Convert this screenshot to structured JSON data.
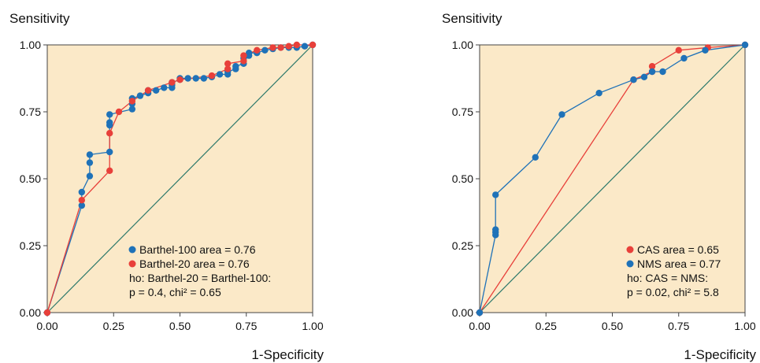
{
  "colors": {
    "background": "#fbe9c8",
    "diagonal": "#2f7a6c",
    "blue": "#1f72b8",
    "red": "#e8403a",
    "axis": "#444444"
  },
  "chart_data": [
    {
      "type": "line",
      "ylabel": "Sensitivity",
      "xlabel": "1-Specificity",
      "xlim": [
        0,
        1
      ],
      "ylim": [
        0,
        1
      ],
      "xticks": [
        "0.00",
        "0.25",
        "0.50",
        "0.75",
        "1.00"
      ],
      "yticks": [
        "0.00",
        "0.25",
        "0.50",
        "0.75",
        "1.00"
      ],
      "series": [
        {
          "name": "Barthel-100 area = 0.76",
          "color": "#1f72b8",
          "x": [
            0,
            0.13,
            0.13,
            0.16,
            0.16,
            0.16,
            0.235,
            0.235,
            0.235,
            0.235,
            0.32,
            0.32,
            0.32,
            0.35,
            0.38,
            0.38,
            0.41,
            0.44,
            0.47,
            0.47,
            0.47,
            0.5,
            0.5,
            0.53,
            0.56,
            0.59,
            0.62,
            0.65,
            0.68,
            0.68,
            0.71,
            0.71,
            0.74,
            0.74,
            0.76,
            0.76,
            0.79,
            0.82,
            0.85,
            0.88,
            0.91,
            0.94,
            0.97,
            1.0
          ],
          "y": [
            0,
            0.4,
            0.45,
            0.51,
            0.56,
            0.59,
            0.6,
            0.7,
            0.71,
            0.74,
            0.76,
            0.78,
            0.8,
            0.81,
            0.82,
            0.83,
            0.83,
            0.84,
            0.84,
            0.85,
            0.86,
            0.87,
            0.875,
            0.875,
            0.875,
            0.875,
            0.88,
            0.89,
            0.89,
            0.9,
            0.91,
            0.92,
            0.93,
            0.95,
            0.96,
            0.97,
            0.97,
            0.98,
            0.985,
            0.99,
            0.99,
            0.99,
            0.995,
            1.0
          ]
        },
        {
          "name": "Barthel-20 area = 0.76",
          "color": "#e8403a",
          "x": [
            0,
            0.13,
            0.235,
            0.235,
            0.27,
            0.32,
            0.38,
            0.47,
            0.5,
            0.62,
            0.68,
            0.68,
            0.74,
            0.74,
            0.79,
            0.85,
            0.88,
            0.91,
            0.94,
            1.0
          ],
          "y": [
            0,
            0.42,
            0.53,
            0.67,
            0.75,
            0.79,
            0.83,
            0.86,
            0.87,
            0.885,
            0.91,
            0.93,
            0.94,
            0.96,
            0.98,
            0.99,
            0.99,
            0.995,
            1.0,
            1.0
          ]
        }
      ],
      "legend": {
        "placement": "bottom-right",
        "entries": [
          {
            "label": "Barthel-100 area = 0.76",
            "color": "#1f72b8"
          },
          {
            "label": "Barthel-20 area = 0.76",
            "color": "#e8403a"
          }
        ],
        "notes": [
          "ho: Barthel-20 = Barthel-100:",
          "p = 0.4, chi² = 0.65"
        ]
      }
    },
    {
      "type": "line",
      "ylabel": "Sensitivity",
      "xlabel": "1-Specificity",
      "xlim": [
        0,
        1
      ],
      "ylim": [
        0,
        1
      ],
      "xticks": [
        "0.00",
        "0.25",
        "0.50",
        "0.75",
        "1.00"
      ],
      "yticks": [
        "0.00",
        "0.25",
        "0.50",
        "0.75",
        "1.00"
      ],
      "series": [
        {
          "name": "CAS area = 0.65",
          "color": "#e8403a",
          "x": [
            0,
            0.58,
            0.65,
            0.65,
            0.75,
            0.86,
            1.0
          ],
          "y": [
            0,
            0.87,
            0.9,
            0.92,
            0.98,
            0.99,
            1.0
          ]
        },
        {
          "name": "NMS area = 0.77",
          "color": "#1f72b8",
          "x": [
            0,
            0.06,
            0.06,
            0.06,
            0.06,
            0.21,
            0.31,
            0.45,
            0.58,
            0.62,
            0.65,
            0.69,
            0.77,
            0.85,
            1.0
          ],
          "y": [
            0,
            0.29,
            0.3,
            0.31,
            0.44,
            0.58,
            0.74,
            0.82,
            0.87,
            0.88,
            0.9,
            0.9,
            0.95,
            0.98,
            1.0
          ]
        }
      ],
      "legend": {
        "placement": "bottom-right",
        "entries": [
          {
            "label": "CAS area = 0.65",
            "color": "#e8403a"
          },
          {
            "label": "NMS area = 0.77",
            "color": "#1f72b8"
          }
        ],
        "notes": [
          "ho: CAS = NMS:",
          "p = 0.02, chi² = 5.8"
        ]
      }
    }
  ]
}
